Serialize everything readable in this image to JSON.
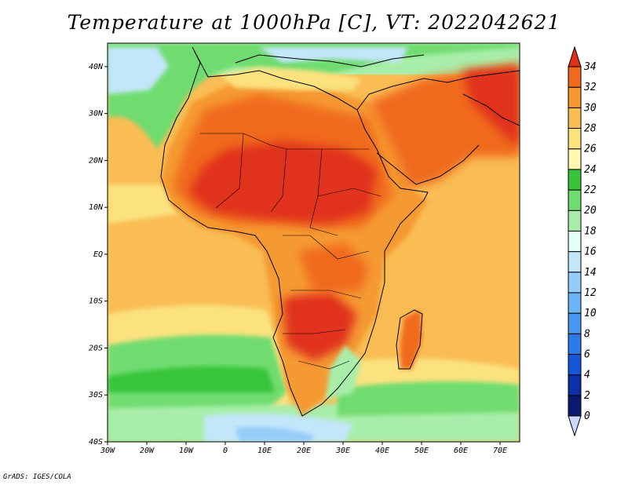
{
  "title": "Temperature at 1000hPa [C], VT: 2022042621",
  "credit": "GrADS: IGES/COLA",
  "map": {
    "lon_range": [
      -30,
      75
    ],
    "lat_range": [
      -40,
      45
    ],
    "x_ticks": [
      "30W",
      "20W",
      "10W",
      "0",
      "10E",
      "20E",
      "30E",
      "40E",
      "50E",
      "60E",
      "70E"
    ],
    "x_tick_values": [
      -30,
      -20,
      -10,
      0,
      10,
      20,
      30,
      40,
      50,
      60,
      70
    ],
    "y_ticks": [
      "40S",
      "30S",
      "20S",
      "10S",
      "EQ",
      "10N",
      "20N",
      "30N",
      "40N"
    ],
    "y_tick_values": [
      -40,
      -30,
      -20,
      -10,
      0,
      10,
      20,
      30,
      40
    ]
  },
  "colorbar": {
    "unit": "C",
    "levels": [
      "0",
      "2",
      "4",
      "6",
      "8",
      "10",
      "12",
      "14",
      "16",
      "18",
      "20",
      "22",
      "24",
      "26",
      "28",
      "30",
      "32",
      "34"
    ],
    "colors": [
      "#ccd8ff",
      "#0a1a6e",
      "#0c30a8",
      "#1556d6",
      "#2c7ae8",
      "#4896f0",
      "#6ab3f5",
      "#96ccf8",
      "#c3e6fa",
      "#e6fff6",
      "#a8eeaa",
      "#6fdc6f",
      "#37c43b",
      "#fff6b0",
      "#fbe27f",
      "#f9bd54",
      "#f59a31",
      "#f06a1e",
      "#e0301a"
    ]
  }
}
